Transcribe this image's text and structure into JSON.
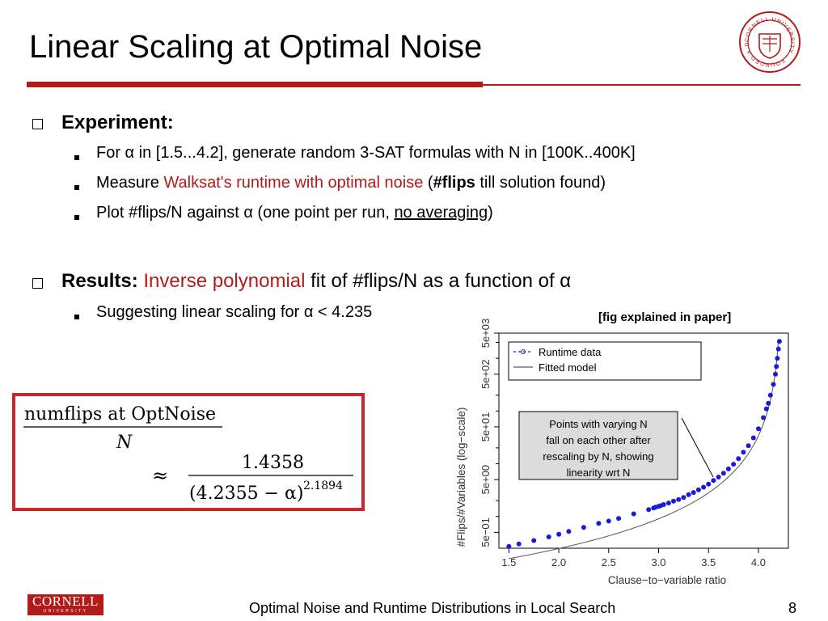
{
  "slide": {
    "title": "Linear Scaling at Optimal Noise",
    "experiment_heading": "Experiment:",
    "bullets_experiment": [
      {
        "pre": "For α in [1.5...4.2], generate random 3-SAT formulas with N in [100K..400K]"
      },
      {
        "pre": "Measure ",
        "red": "Walksat's runtime with optimal noise",
        "mid": " (",
        "bold": "#flips",
        "post": " till solution found)"
      },
      {
        "pre": "Plot #flips/N against α (one point per run, ",
        "underline": "no averaging",
        "post": ")"
      }
    ],
    "results_heading": "Results:",
    "results_red": "Inverse polynomial",
    "results_rest": " fit of #flips/N as a function of α",
    "bullets_results": [
      "Suggesting linear scaling for α < 4.235"
    ],
    "fig_note": "[fig explained in paper]",
    "footer_text": "Optimal Noise and Runtime Distributions in Local Search",
    "page_number": "8",
    "footer_logo_text": "CORNELL",
    "footer_logo_sub": "UNIVERSITY",
    "seal_text": "CORNELL UNIVERSITY · FOUNDED A.D. 1865"
  },
  "formula": {
    "numerator": "numflips at OptNoise",
    "denominator": "N",
    "approx": "≈",
    "coef": "1.4358",
    "base": "(4.2355 − α)",
    "exponent": "2.1894"
  },
  "colors": {
    "accent": "#b31b1b",
    "points": "#1a1adc",
    "formula_border": "#c8262d"
  },
  "chart_data": {
    "type": "scatter",
    "xlabel": "Clause−to−variable ratio",
    "ylabel": "#Flips/#Variables (log−scale)",
    "x_ticks": [
      "1.5",
      "2.0",
      "2.5",
      "3.0",
      "3.5",
      "4.0"
    ],
    "y_ticks": [
      "5e−01",
      "5e+00",
      "5e+01",
      "5e+02",
      "5e+03"
    ],
    "y_scale": "log",
    "xlim": [
      1.4,
      4.3
    ],
    "ylim": [
      0.25,
      3000
    ],
    "legend": [
      {
        "name": "Runtime data",
        "style": "points-dashed"
      },
      {
        "name": "Fitted model",
        "style": "line"
      }
    ],
    "legend_position": "top-left",
    "annotation": "Points with varying N fall on each other after rescaling by N, showing linearity wrt N",
    "series": [
      {
        "name": "Runtime data",
        "points": [
          [
            1.5,
            0.27
          ],
          [
            1.6,
            0.3
          ],
          [
            1.75,
            0.35
          ],
          [
            1.9,
            0.41
          ],
          [
            2.0,
            0.46
          ],
          [
            2.1,
            0.52
          ],
          [
            2.25,
            0.62
          ],
          [
            2.4,
            0.74
          ],
          [
            2.5,
            0.82
          ],
          [
            2.6,
            0.92
          ],
          [
            2.75,
            1.12
          ],
          [
            2.9,
            1.35
          ],
          [
            2.95,
            1.45
          ],
          [
            2.97,
            1.5
          ],
          [
            3.0,
            1.55
          ],
          [
            3.02,
            1.6
          ],
          [
            3.05,
            1.68
          ],
          [
            3.1,
            1.8
          ],
          [
            3.15,
            1.95
          ],
          [
            3.2,
            2.1
          ],
          [
            3.25,
            2.3
          ],
          [
            3.3,
            2.6
          ],
          [
            3.35,
            2.85
          ],
          [
            3.4,
            3.2
          ],
          [
            3.45,
            3.6
          ],
          [
            3.5,
            4.1
          ],
          [
            3.55,
            4.8
          ],
          [
            3.6,
            5.6
          ],
          [
            3.65,
            6.6
          ],
          [
            3.7,
            8.0
          ],
          [
            3.75,
            9.8
          ],
          [
            3.8,
            12.5
          ],
          [
            3.85,
            16.5
          ],
          [
            3.9,
            22
          ],
          [
            3.95,
            31
          ],
          [
            4.0,
            46
          ],
          [
            4.05,
            75
          ],
          [
            4.08,
            110
          ],
          [
            4.1,
            140
          ],
          [
            4.12,
            200
          ],
          [
            4.15,
            320
          ],
          [
            4.17,
            500
          ],
          [
            4.18,
            700
          ],
          [
            4.19,
            1000
          ],
          [
            4.2,
            1500
          ],
          [
            4.21,
            2100
          ]
        ]
      }
    ],
    "fit_model": {
      "coef": 1.4358,
      "alpha_c": 4.2355,
      "exponent": 2.1894
    }
  }
}
